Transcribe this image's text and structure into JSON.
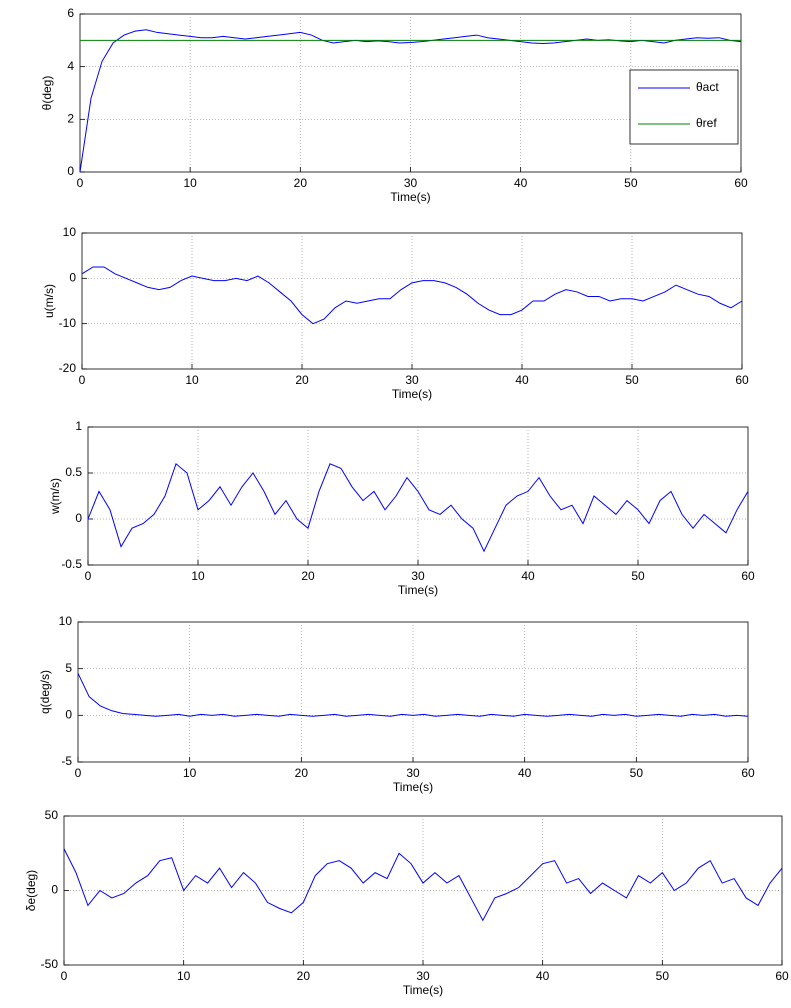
{
  "chart_data": [
    {
      "type": "line",
      "xlabel": "Time(s)",
      "ylabel": "θ(deg)",
      "x": [
        0,
        1,
        2,
        3,
        4,
        5,
        6,
        7,
        8,
        9,
        10,
        11,
        12,
        13,
        14,
        15,
        16,
        17,
        18,
        19,
        20,
        21,
        22,
        23,
        24,
        25,
        26,
        27,
        28,
        29,
        30,
        31,
        32,
        33,
        34,
        35,
        36,
        37,
        38,
        39,
        40,
        41,
        42,
        43,
        44,
        45,
        46,
        47,
        48,
        49,
        50,
        51,
        52,
        53,
        54,
        55,
        56,
        57,
        58,
        59,
        60
      ],
      "series": [
        {
          "name": "θact",
          "color": "#0000ff",
          "values": [
            0,
            2.8,
            4.2,
            4.9,
            5.2,
            5.35,
            5.4,
            5.3,
            5.25,
            5.2,
            5.15,
            5.1,
            5.1,
            5.15,
            5.1,
            5.05,
            5.1,
            5.15,
            5.2,
            5.25,
            5.3,
            5.2,
            5.0,
            4.9,
            4.95,
            5.0,
            4.95,
            4.98,
            4.95,
            4.9,
            4.92,
            4.95,
            5.0,
            5.05,
            5.1,
            5.15,
            5.2,
            5.1,
            5.05,
            5.0,
            4.95,
            4.9,
            4.88,
            4.9,
            4.95,
            5.0,
            5.05,
            5.0,
            5.02,
            4.98,
            4.95,
            5.0,
            4.95,
            4.9,
            5.0,
            5.05,
            5.1,
            5.08,
            5.1,
            5.0,
            4.95
          ]
        },
        {
          "name": "θref",
          "color": "#008000",
          "x": [
            0,
            60
          ],
          "values": [
            5,
            5
          ]
        }
      ],
      "xlim": [
        0,
        60
      ],
      "ylim": [
        0,
        6
      ],
      "xticks": [
        0,
        10,
        20,
        30,
        40,
        50,
        60
      ],
      "yticks": [
        0,
        2,
        4,
        6
      ],
      "grid": true,
      "legend": "right"
    },
    {
      "type": "line",
      "xlabel": "Time(s)",
      "ylabel": "u(m/s)",
      "x": [
        0,
        1,
        2,
        3,
        4,
        5,
        6,
        7,
        8,
        9,
        10,
        11,
        12,
        13,
        14,
        15,
        16,
        17,
        18,
        19,
        20,
        21,
        22,
        23,
        24,
        25,
        26,
        27,
        28,
        29,
        30,
        31,
        32,
        33,
        34,
        35,
        36,
        37,
        38,
        39,
        40,
        41,
        42,
        43,
        44,
        45,
        46,
        47,
        48,
        49,
        50,
        51,
        52,
        53,
        54,
        55,
        56,
        57,
        58,
        59,
        60
      ],
      "series": [
        {
          "color": "#0000ff",
          "values": [
            1,
            2.5,
            2.5,
            1,
            0,
            -1,
            -2,
            -2.5,
            -2,
            -0.5,
            0.5,
            0,
            -0.5,
            -0.5,
            0,
            -0.5,
            0.5,
            -1,
            -3,
            -5,
            -8,
            -10,
            -9,
            -6.5,
            -5,
            -5.5,
            -5,
            -4.5,
            -4.5,
            -2.5,
            -1,
            -0.5,
            -0.5,
            -1,
            -2,
            -3.5,
            -5.5,
            -7,
            -8,
            -8,
            -7,
            -5,
            -5,
            -3.5,
            -2.5,
            -3,
            -4,
            -4,
            -5,
            -4.5,
            -4.5,
            -5,
            -4,
            -3,
            -1.5,
            -2.5,
            -3.5,
            -4,
            -5.5,
            -6.5,
            -5
          ]
        }
      ],
      "xlim": [
        0,
        60
      ],
      "ylim": [
        -20,
        10
      ],
      "xticks": [
        0,
        10,
        20,
        30,
        40,
        50,
        60
      ],
      "yticks": [
        -20,
        -10,
        0,
        10
      ],
      "grid": true
    },
    {
      "type": "line",
      "xlabel": "Time(s)",
      "ylabel": "w(m/s)",
      "x": [
        0,
        1,
        2,
        3,
        4,
        5,
        6,
        7,
        8,
        9,
        10,
        11,
        12,
        13,
        14,
        15,
        16,
        17,
        18,
        19,
        20,
        21,
        22,
        23,
        24,
        25,
        26,
        27,
        28,
        29,
        30,
        31,
        32,
        33,
        34,
        35,
        36,
        37,
        38,
        39,
        40,
        41,
        42,
        43,
        44,
        45,
        46,
        47,
        48,
        49,
        50,
        51,
        52,
        53,
        54,
        55,
        56,
        57,
        58,
        59,
        60
      ],
      "series": [
        {
          "color": "#0000ff",
          "values": [
            0,
            0.3,
            0.1,
            -0.3,
            -0.1,
            -0.05,
            0.05,
            0.25,
            0.6,
            0.5,
            0.1,
            0.2,
            0.35,
            0.15,
            0.35,
            0.5,
            0.3,
            0.05,
            0.2,
            0.0,
            -0.1,
            0.3,
            0.6,
            0.55,
            0.35,
            0.2,
            0.3,
            0.1,
            0.25,
            0.45,
            0.3,
            0.1,
            0.05,
            0.15,
            0.0,
            -0.1,
            -0.35,
            -0.1,
            0.15,
            0.25,
            0.3,
            0.45,
            0.25,
            0.1,
            0.15,
            -0.05,
            0.25,
            0.15,
            0.05,
            0.2,
            0.1,
            -0.05,
            0.2,
            0.3,
            0.05,
            -0.1,
            0.05,
            -0.05,
            -0.15,
            0.1,
            0.3
          ]
        }
      ],
      "xlim": [
        0,
        60
      ],
      "ylim": [
        -0.5,
        1
      ],
      "xticks": [
        0,
        10,
        20,
        30,
        40,
        50,
        60
      ],
      "yticks": [
        -0.5,
        0,
        0.5,
        1
      ],
      "grid": true
    },
    {
      "type": "line",
      "xlabel": "Time(s)",
      "ylabel": "q(deg/s)",
      "x": [
        0,
        1,
        2,
        3,
        4,
        5,
        6,
        7,
        8,
        9,
        10,
        11,
        12,
        13,
        14,
        15,
        16,
        17,
        18,
        19,
        20,
        21,
        22,
        23,
        24,
        25,
        26,
        27,
        28,
        29,
        30,
        31,
        32,
        33,
        34,
        35,
        36,
        37,
        38,
        39,
        40,
        41,
        42,
        43,
        44,
        45,
        46,
        47,
        48,
        49,
        50,
        51,
        52,
        53,
        54,
        55,
        56,
        57,
        58,
        59,
        60
      ],
      "series": [
        {
          "color": "#0000ff",
          "values": [
            4.5,
            2,
            1,
            0.5,
            0.2,
            0.1,
            0,
            -0.1,
            0,
            0.1,
            -0.1,
            0.1,
            0,
            0.1,
            -0.1,
            0,
            0.1,
            0,
            -0.1,
            0.1,
            0,
            -0.1,
            0,
            0.1,
            -0.1,
            0,
            0.1,
            0,
            -0.1,
            0.1,
            0,
            0.1,
            -0.1,
            0,
            0.1,
            0,
            -0.1,
            0.1,
            0,
            -0.1,
            0.1,
            0,
            -0.1,
            0,
            0.1,
            0,
            -0.1,
            0.1,
            0,
            0.1,
            -0.1,
            0,
            0.1,
            0,
            -0.1,
            0.1,
            0,
            0.1,
            -0.1,
            0,
            -0.1
          ]
        }
      ],
      "xlim": [
        0,
        60
      ],
      "ylim": [
        -5,
        10
      ],
      "xticks": [
        0,
        10,
        20,
        30,
        40,
        50,
        60
      ],
      "yticks": [
        -5,
        0,
        5,
        10
      ],
      "grid": true
    },
    {
      "type": "line",
      "xlabel": "Time(s)",
      "ylabel": "δe(deg)",
      "x": [
        0,
        1,
        2,
        3,
        4,
        5,
        6,
        7,
        8,
        9,
        10,
        11,
        12,
        13,
        14,
        15,
        16,
        17,
        18,
        19,
        20,
        21,
        22,
        23,
        24,
        25,
        26,
        27,
        28,
        29,
        30,
        31,
        32,
        33,
        34,
        35,
        36,
        37,
        38,
        39,
        40,
        41,
        42,
        43,
        44,
        45,
        46,
        47,
        48,
        49,
        50,
        51,
        52,
        53,
        54,
        55,
        56,
        57,
        58,
        59,
        60
      ],
      "series": [
        {
          "color": "#0000ff",
          "values": [
            28,
            12,
            -10,
            0,
            -5,
            -2,
            5,
            10,
            20,
            22,
            0,
            10,
            5,
            15,
            2,
            12,
            5,
            -8,
            -12,
            -15,
            -8,
            10,
            18,
            20,
            15,
            5,
            12,
            8,
            25,
            18,
            5,
            12,
            5,
            10,
            -5,
            -20,
            -5,
            -2,
            2,
            10,
            18,
            20,
            5,
            8,
            -2,
            5,
            0,
            -5,
            10,
            5,
            12,
            0,
            5,
            15,
            20,
            5,
            8,
            -5,
            -10,
            5,
            15
          ]
        }
      ],
      "xlim": [
        0,
        60
      ],
      "ylim": [
        -50,
        50
      ],
      "xticks": [
        0,
        10,
        20,
        30,
        40,
        50,
        60
      ],
      "yticks": [
        -50,
        0,
        50
      ],
      "grid": true
    }
  ]
}
